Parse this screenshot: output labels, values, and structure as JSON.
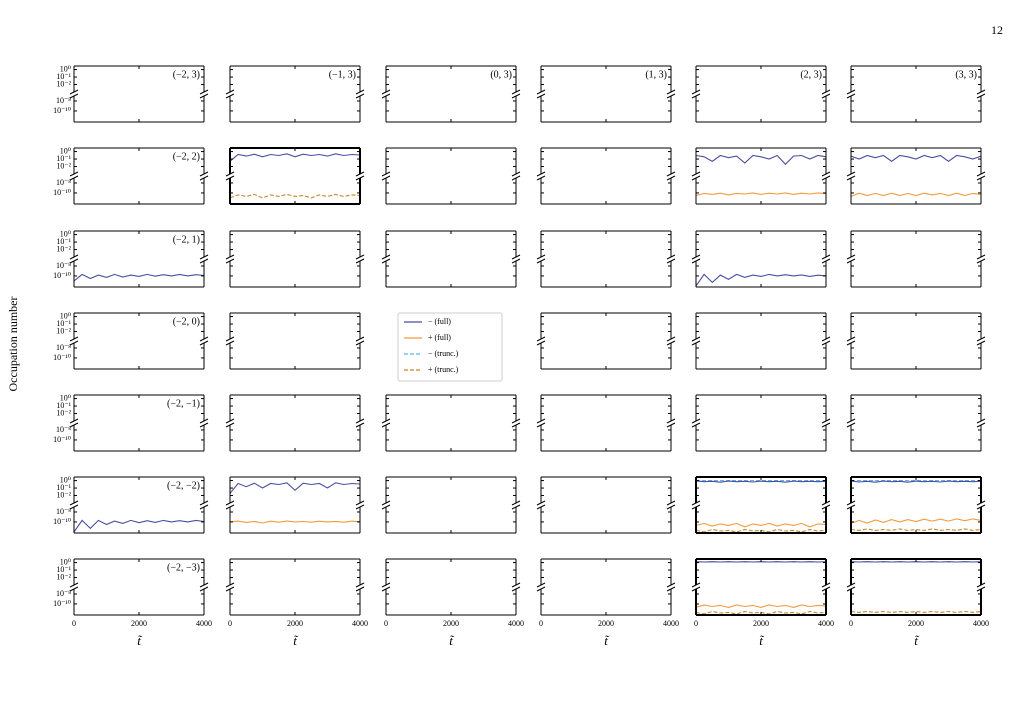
{
  "page_number": "12",
  "chart_data": {
    "type": "line",
    "ylabel": "Occupation number",
    "xlabel": "t̃",
    "log_y": true,
    "x": [
      0,
      250,
      500,
      750,
      1000,
      1250,
      1500,
      1750,
      2000,
      2250,
      2500,
      2750,
      3000,
      3250,
      3500,
      3750,
      4000
    ],
    "xlim": [
      0,
      4000
    ],
    "xticks": [
      0,
      2000,
      4000
    ],
    "ylim": [
      6e-13,
      3
    ],
    "ybreak": [
      1e-07,
      0.001
    ],
    "yticks": [
      {
        "value": 1,
        "label": "10⁰"
      },
      {
        "value": 0.1,
        "label": "10⁻¹"
      },
      {
        "value": 0.01,
        "label": "10⁻²"
      },
      {
        "value": 1e-08,
        "label": "10⁻⁸"
      },
      {
        "value": 1e-10,
        "label": "10⁻¹⁰"
      }
    ],
    "series": [
      {
        "name": "− (full)",
        "color": "#4a4e9e",
        "dashed": false
      },
      {
        "name": "+ (full)",
        "color": "#f39b3c",
        "dashed": false
      },
      {
        "name": "− (trunc.)",
        "color": "#5ab4e8",
        "dashed": true
      },
      {
        "name": "+ (trunc.)",
        "color": "#c08a2a",
        "dashed": true
      }
    ],
    "panels": [
      [
        {
          "label": "(−2, 3)",
          "lines": []
        },
        {
          "label": "(−1, 3)",
          "lines": []
        },
        {
          "label": "(0, 3)",
          "lines": []
        },
        {
          "label": "(1, 3)",
          "lines": []
        },
        {
          "label": "(2, 3)",
          "lines": []
        },
        {
          "label": "(3, 3)",
          "lines": []
        }
      ],
      [
        {
          "label": "(−2, 2)",
          "lines": []
        },
        {
          "bold": true,
          "lines": [
            {
              "series": 0,
              "values": [
                0.05,
                0.4,
                0.25,
                0.45,
                0.2,
                0.4,
                0.3,
                0.5,
                0.2,
                0.45,
                0.3,
                0.4,
                0.25,
                0.5,
                0.3,
                0.4,
                0.35
              ]
            },
            {
              "series": 3,
              "values": [
                1e-11,
                4e-11,
                2e-11,
                5e-11,
                1e-11,
                4e-11,
                2e-11,
                5e-11,
                2e-11,
                3e-11,
                1e-11,
                4e-11,
                2e-11,
                5e-11,
                2e-11,
                4e-11,
                3e-11
              ]
            }
          ]
        },
        {
          "lines": []
        },
        {
          "lines": []
        },
        {
          "lines": [
            {
              "series": 0,
              "values": [
                0.3,
                0.2,
                0.05,
                0.3,
                0.15,
                0.25,
                0.03,
                0.3,
                0.2,
                0.1,
                0.3,
                0.02,
                0.25,
                0.3,
                0.1,
                0.3,
                0.2
              ]
            },
            {
              "series": 1,
              "values": [
                3e-11,
                8e-11,
                5e-11,
                9e-11,
                4e-11,
                8e-11,
                6e-11,
                1e-10,
                5e-11,
                9e-11,
                6e-11,
                1e-10,
                5e-11,
                9e-11,
                6e-11,
                1e-10,
                7e-11
              ]
            }
          ]
        },
        {
          "lines": [
            {
              "series": 0,
              "values": [
                0.25,
                0.1,
                0.3,
                0.15,
                0.3,
                0.05,
                0.3,
                0.2,
                0.1,
                0.3,
                0.15,
                0.3,
                0.05,
                0.3,
                0.2,
                0.1,
                0.25
              ]
            },
            {
              "series": 1,
              "values": [
                2e-11,
                9e-11,
                3e-11,
                8e-11,
                3e-11,
                9e-11,
                3e-11,
                8e-11,
                3e-11,
                9e-11,
                4e-11,
                8e-11,
                3e-11,
                9e-11,
                3e-11,
                8e-11,
                5e-11
              ]
            }
          ]
        }
      ],
      [
        {
          "label": "(−2, 1)",
          "lines": [
            {
              "series": 0,
              "values": [
                1e-11,
                2e-10,
                3e-11,
                1.5e-10,
                5e-11,
                2e-10,
                6e-11,
                1.5e-10,
                8e-11,
                2e-10,
                9e-11,
                1.8e-10,
                1e-10,
                2e-10,
                1e-10,
                1.8e-10,
                1.2e-10
              ]
            }
          ]
        },
        {
          "lines": []
        },
        {
          "lines": []
        },
        {
          "lines": []
        },
        {
          "lines": [
            {
              "series": 0,
              "values": [
                1e-12,
                2e-10,
                5e-12,
                1.5e-10,
                2e-11,
                2e-10,
                5e-11,
                1.5e-10,
                8e-11,
                2e-10,
                1e-10,
                1.8e-10,
                1e-10,
                1.6e-10,
                8e-11,
                1.4e-10,
                1e-10
              ]
            }
          ]
        },
        {
          "lines": []
        }
      ],
      [
        {
          "label": "(−2, 0)",
          "lines": []
        },
        {
          "lines": []
        },
        null,
        {
          "lines": []
        },
        {
          "lines": []
        },
        {
          "lines": []
        }
      ],
      [
        {
          "label": "(−2, −1)",
          "lines": []
        },
        {
          "lines": []
        },
        {
          "lines": []
        },
        {
          "lines": []
        },
        {
          "lines": []
        },
        {
          "lines": []
        }
      ],
      [
        {
          "label": "(−2, −2)",
          "lines": [
            {
              "series": 0,
              "values": [
                1e-12,
                2e-10,
                5e-12,
                2e-10,
                3e-11,
                1.5e-10,
                5e-11,
                2e-10,
                7e-11,
                1.8e-10,
                8e-11,
                2e-10,
                1e-10,
                1.8e-10,
                1e-10,
                2e-10,
                1.2e-10
              ]
            }
          ]
        },
        {
          "lines": [
            {
              "series": 0,
              "values": [
                0.02,
                0.4,
                0.15,
                0.45,
                0.1,
                0.4,
                0.3,
                0.5,
                0.05,
                0.45,
                0.3,
                0.4,
                0.1,
                0.5,
                0.3,
                0.4,
                0.35
              ]
            },
            {
              "series": 1,
              "values": [
                1e-10,
                1.5e-10,
                8e-11,
                1.3e-10,
                6e-11,
                1.4e-10,
                9e-11,
                1.5e-10,
                1e-10,
                1.2e-10,
                9e-11,
                1.4e-10,
                1e-10,
                1.3e-10,
                9e-11,
                1.4e-10,
                1.1e-10
              ]
            }
          ]
        },
        {
          "lines": []
        },
        {
          "lines": []
        },
        {
          "bold": true,
          "lines": [
            {
              "series": 2,
              "values": [
                1,
                1,
                1,
                1,
                1,
                1,
                1,
                1,
                1,
                1,
                1,
                1,
                1,
                1,
                1,
                1,
                1
              ]
            },
            {
              "series": 0,
              "values": [
                0.9,
                0.7,
                0.8,
                0.6,
                0.85,
                0.7,
                0.8,
                0.65,
                0.85,
                0.7,
                0.8,
                0.6,
                0.85,
                0.7,
                0.8,
                0.7,
                0.8
              ]
            },
            {
              "series": 1,
              "values": [
                2e-11,
                5e-11,
                1.5e-11,
                4e-11,
                2e-11,
                5e-11,
                1e-11,
                4e-11,
                2e-11,
                5e-11,
                1.5e-11,
                4e-11,
                2e-11,
                5e-11,
                1e-11,
                4e-11,
                3e-11
              ]
            },
            {
              "series": 3,
              "values": [
                2e-12,
                1e-12,
                3e-12,
                1.5e-12,
                2e-12,
                1e-12,
                3e-12,
                1.5e-12,
                2e-12,
                1e-12,
                3e-12,
                1.5e-12,
                2e-12,
                1e-12,
                3e-12,
                1.5e-12,
                2e-12
              ]
            }
          ]
        },
        {
          "bold": true,
          "lines": [
            {
              "series": 2,
              "values": [
                1,
                1,
                1,
                1,
                1,
                1,
                1,
                1,
                1,
                1,
                1,
                1,
                1,
                1,
                1,
                1,
                1
              ]
            },
            {
              "series": 0,
              "values": [
                0.9,
                0.65,
                0.8,
                0.6,
                0.85,
                0.7,
                0.8,
                0.6,
                0.85,
                0.7,
                0.8,
                0.65,
                0.85,
                0.7,
                0.8,
                0.7,
                0.8
              ]
            },
            {
              "series": 1,
              "values": [
                5e-11,
                2e-10,
                6e-11,
                2.5e-10,
                8e-11,
                3e-10,
                1e-10,
                3e-10,
                1.2e-10,
                3.5e-10,
                1.5e-10,
                3.5e-10,
                1.5e-10,
                4e-10,
                1.8e-10,
                4e-10,
                2e-10
              ]
            },
            {
              "series": 3,
              "values": [
                3e-12,
                2e-12,
                4e-12,
                2e-12,
                3e-12,
                2e-12,
                4e-12,
                2e-12,
                3e-12,
                2e-12,
                4e-12,
                2e-12,
                3e-12,
                2e-12,
                4e-12,
                2e-12,
                3e-12
              ]
            }
          ]
        }
      ],
      [
        {
          "label": "(−2, −3)",
          "lines": []
        },
        {
          "lines": []
        },
        {
          "lines": []
        },
        {
          "lines": []
        },
        {
          "bold": true,
          "lines": [
            {
              "series": 2,
              "values": [
                1.2,
                1.2,
                1.2,
                1.2,
                1.2,
                1.2,
                1.2,
                1.2,
                1.2,
                1.2,
                1.2,
                1.2,
                1.2,
                1.2,
                1.2,
                1.2,
                1.2
              ]
            },
            {
              "series": 0,
              "values": [
                1.3,
                1.2,
                1.3,
                1.2,
                1.3,
                1.2,
                1.3,
                1.2,
                1.3,
                1.2,
                1.3,
                1.2,
                1.3,
                1.2,
                1.3,
                1.2,
                1.3
              ]
            },
            {
              "series": 1,
              "values": [
                2e-11,
                6e-11,
                3e-11,
                5e-11,
                2e-11,
                6e-11,
                3e-11,
                5e-11,
                2e-11,
                6e-11,
                3e-11,
                5e-11,
                2e-11,
                6e-11,
                3e-11,
                5e-11,
                4e-11
              ]
            },
            {
              "series": 3,
              "values": [
                2e-12,
                1e-12,
                3e-12,
                1.5e-12,
                2e-12,
                1e-12,
                3e-12,
                1.5e-12,
                2e-12,
                1e-12,
                3e-12,
                1.5e-12,
                2e-12,
                1e-12,
                3e-12,
                1.5e-12,
                2e-12
              ]
            }
          ]
        },
        {
          "bold": true,
          "lines": [
            {
              "series": 2,
              "values": [
                1.2,
                1.2,
                1.2,
                1.2,
                1.2,
                1.2,
                1.2,
                1.2,
                1.2,
                1.2,
                1.2,
                1.2,
                1.2,
                1.2,
                1.2,
                1.2,
                1.2
              ]
            },
            {
              "series": 0,
              "values": [
                1.3,
                1.2,
                1.3,
                1.2,
                1.3,
                1.2,
                1.3,
                1.2,
                1.3,
                1.2,
                1.3,
                1.2,
                1.3,
                1.2,
                1.3,
                1.2,
                1.3
              ]
            },
            {
              "series": 3,
              "values": [
                3e-12,
                2e-12,
                3e-12,
                2e-12,
                3e-12,
                2e-12,
                3e-12,
                2e-12,
                3e-12,
                2e-12,
                3e-12,
                2e-12,
                3e-12,
                2e-12,
                3e-12,
                2e-12,
                3e-12
              ]
            }
          ]
        }
      ]
    ]
  }
}
